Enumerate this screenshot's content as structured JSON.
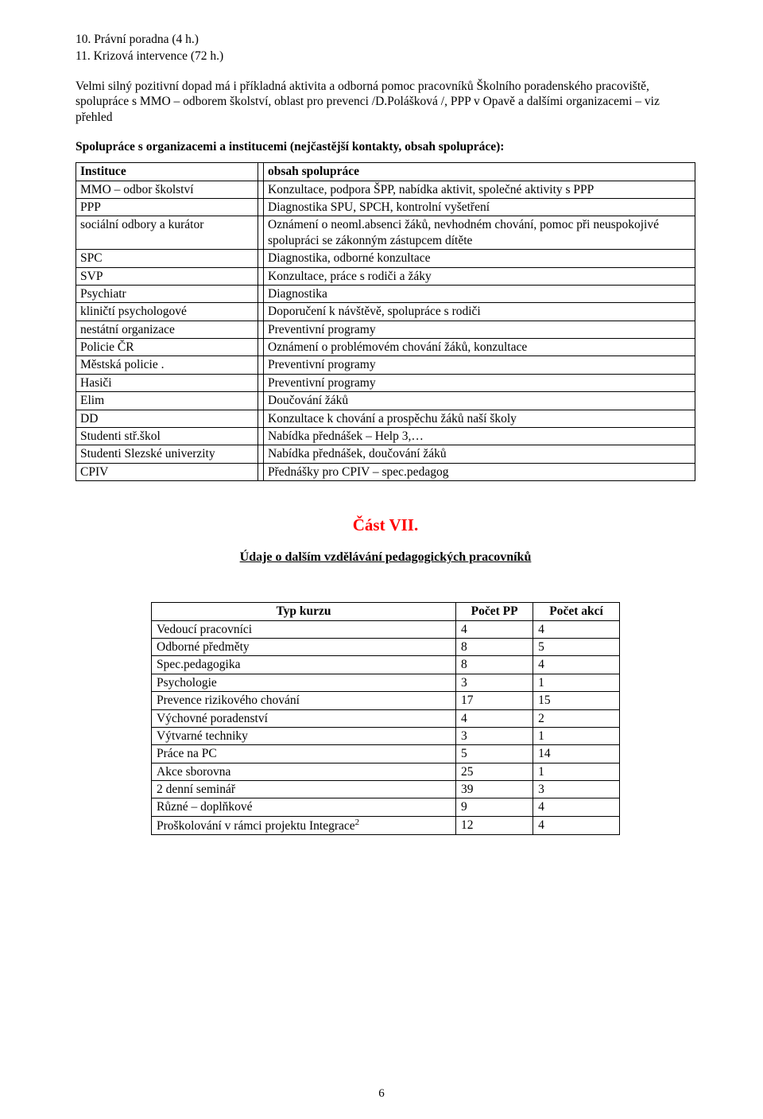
{
  "list": {
    "item10": "10. Právní poradna (4 h.)",
    "item11": "11. Krizová intervence (72 h.)"
  },
  "paragraph": "Velmi silný pozitivní dopad má i příkladná aktivita a odborná pomoc pracovníků Školního poradenského pracoviště, spolupráce s MMO – odborem školství, oblast pro prevenci /D.Polášková /, PPP v Opavě a dalšími organizacemi – viz přehled",
  "coop_heading": "Spolupráce s organizacemi a institucemi (nejčastější kontakty, obsah spolupráce):",
  "coop_table": {
    "header": {
      "c1": "Instituce",
      "c2": "obsah spolupráce"
    },
    "rows": [
      {
        "c1": "MMO – odbor školství",
        "c2": "Konzultace, podpora ŠPP, nabídka aktivit, společné aktivity s PPP"
      },
      {
        "c1": "PPP",
        "c2": "Diagnostika SPU, SPCH, kontrolní vyšetření"
      },
      {
        "c1": "sociální odbory a kurátor",
        "c2": "Oznámení o neoml.absenci žáků, nevhodném chování,  pomoc při neuspokojivé spolupráci se zákonným zástupcem dítěte"
      },
      {
        "c1": "SPC",
        "c2": "Diagnostika, odborné konzultace"
      },
      {
        "c1": "SVP",
        "c2": "Konzultace, práce s rodiči a žáky"
      },
      {
        "c1": "Psychiatr",
        "c2": "Diagnostika"
      },
      {
        "c1": "kliničtí psychologové",
        "c2": "Doporučení k návštěvě, spolupráce s rodiči"
      },
      {
        "c1": "nestátní organizace",
        "c2": "Preventivní programy"
      },
      {
        "c1": "Policie ČR",
        "c2": "Oznámení o problémovém chování žáků, konzultace"
      },
      {
        "c1": "Městská policie .",
        "c2": "Preventivní programy"
      },
      {
        "c1": "Hasiči",
        "c2": "Preventivní programy"
      },
      {
        "c1": "Elim",
        "c2": "Doučování žáků"
      },
      {
        "c1": "DD",
        "c2": "Konzultace k chování a prospěchu  žáků naší školy"
      },
      {
        "c1": "Studenti stř.škol",
        "c2": "Nabídka přednášek – Help 3,…"
      },
      {
        "c1": "Studenti Slezské univerzity",
        "c2": "Nabídka přednášek, doučování žáků"
      },
      {
        "c1": "CPIV",
        "c2": "Přednášky pro CPIV – spec.pedagog"
      }
    ]
  },
  "part_heading": "Část VII.",
  "subheading": "Údaje o dalším vzdělávání pedagogických pracovníků",
  "training_table": {
    "header": {
      "c1": "Typ kurzu",
      "c2": "Počet PP",
      "c3": "Počet akcí"
    },
    "rows": [
      {
        "c1": "Vedoucí pracovníci",
        "c2": "4",
        "c3": "4"
      },
      {
        "c1": "Odborné předměty",
        "c2": "8",
        "c3": "5"
      },
      {
        "c1": "Spec.pedagogika",
        "c2": "8",
        "c3": "4"
      },
      {
        "c1": "Psychologie",
        "c2": "3",
        "c3": "1"
      },
      {
        "c1": "Prevence rizikového chování",
        "c2": "17",
        "c3": "15"
      },
      {
        "c1": "Výchovné poradenství",
        "c2": "4",
        "c3": "2"
      },
      {
        "c1": "Výtvarné techniky",
        "c2": "3",
        "c3": "1"
      },
      {
        "c1": "Práce na PC",
        "c2": "5",
        "c3": "14"
      },
      {
        "c1": "Akce sborovna",
        "c2": "25",
        "c3": "1"
      },
      {
        "c1": "2 denní seminář",
        "c2": "39",
        "c3": "3"
      },
      {
        "c1": "Různé – doplňkové",
        "c2": "9",
        "c3": "4"
      },
      {
        "c1": "Proškolování v rámci projektu Integrace",
        "sup": "2",
        "c2": "12",
        "c3": "4"
      }
    ]
  },
  "page_number": "6",
  "colors": {
    "text": "#000000",
    "accent_red": "#ff0000",
    "background": "#ffffff",
    "border": "#000000"
  }
}
